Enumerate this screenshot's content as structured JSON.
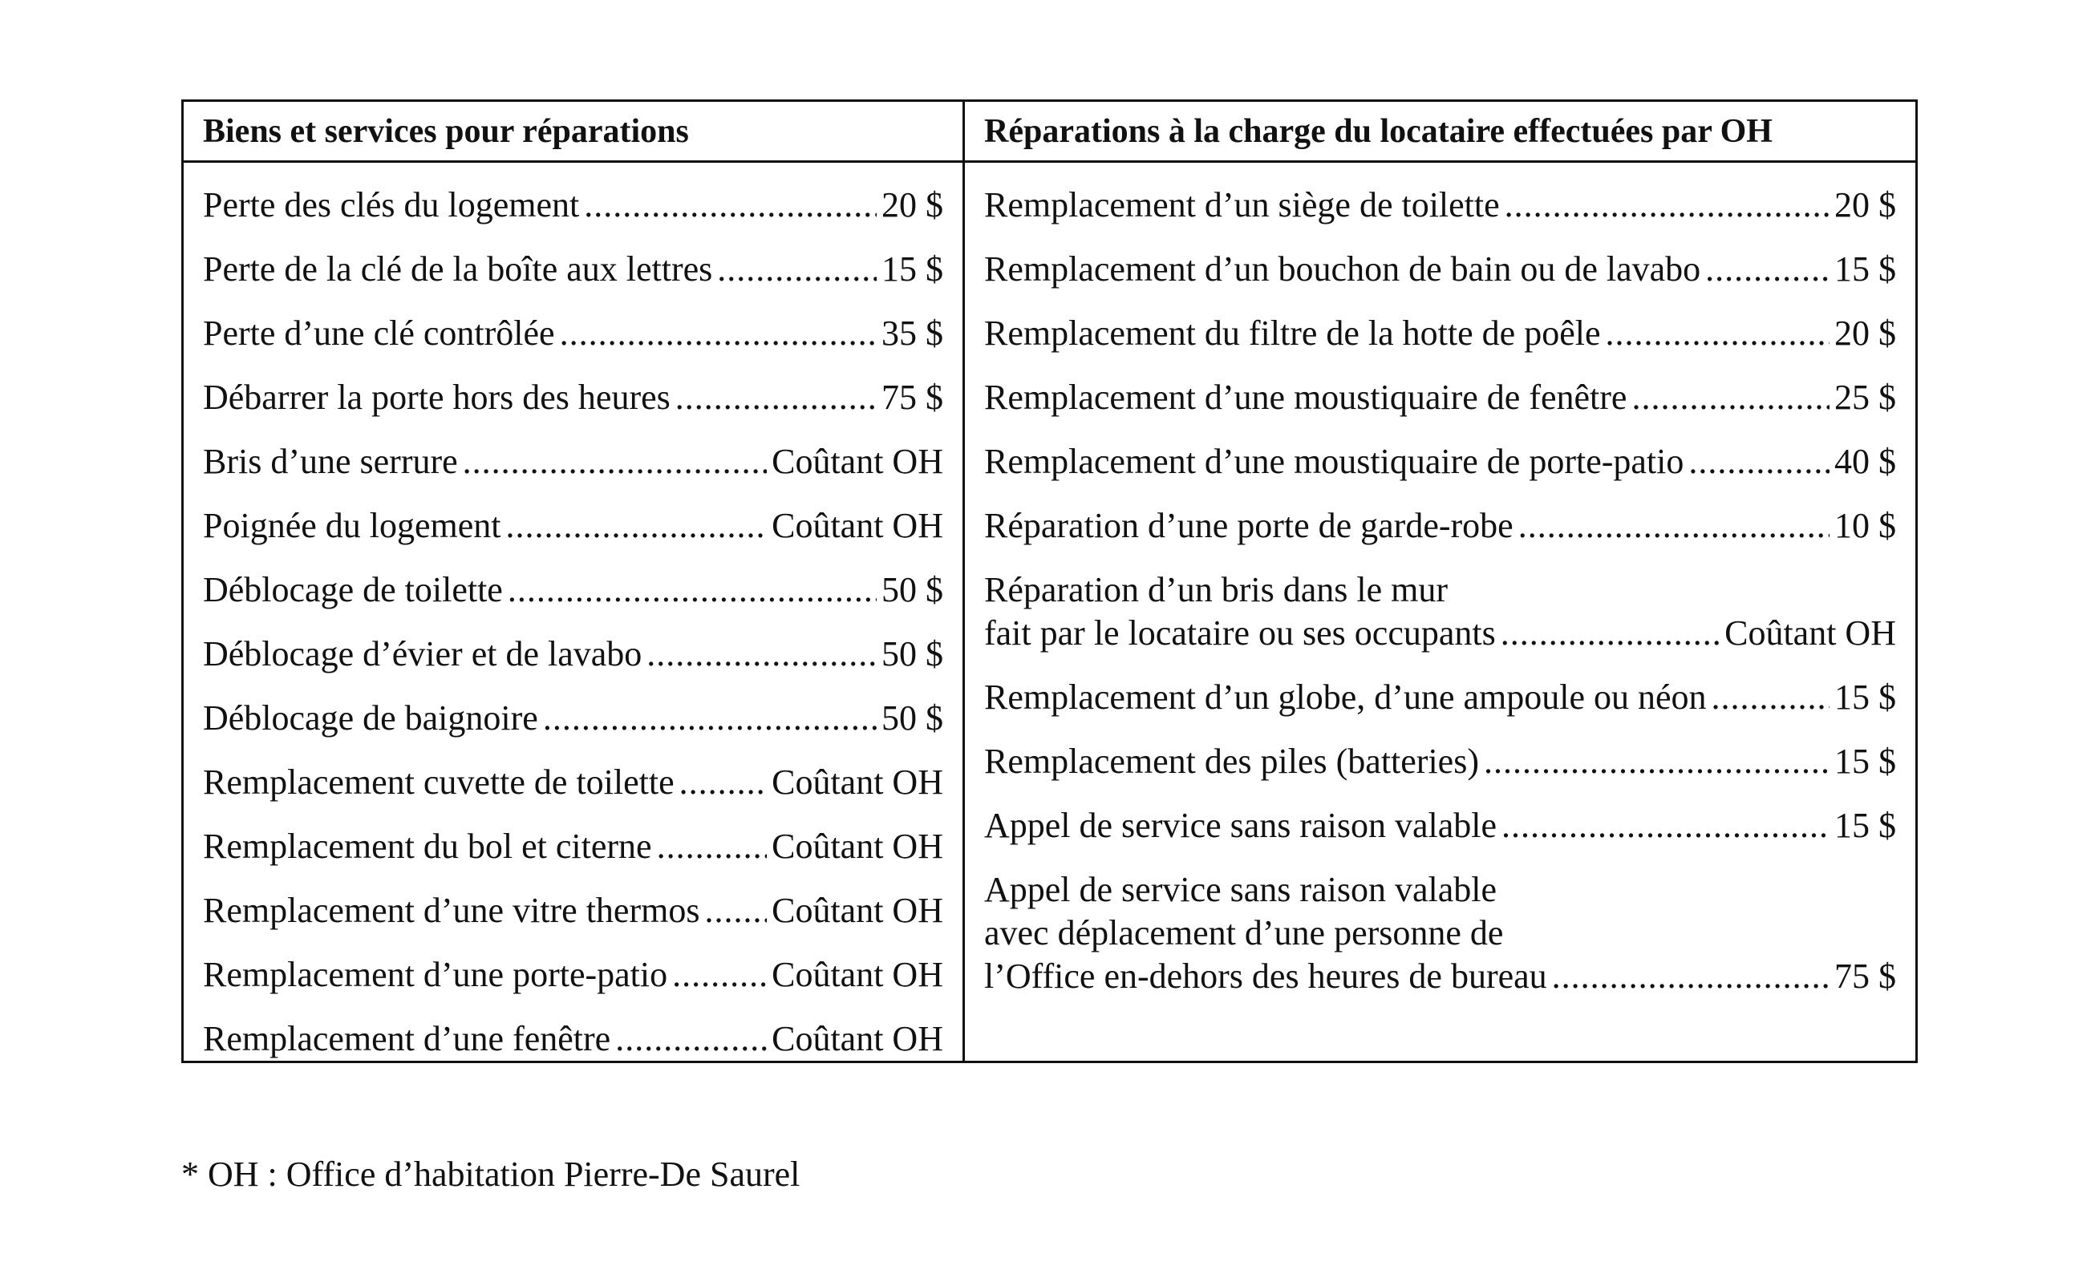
{
  "table": {
    "header": [
      "Biens et services pour réparations",
      "Réparations à la charge du locataire effectuées par OH"
    ],
    "left": [
      {
        "label": [
          "Perte des clés du logement"
        ],
        "price": "20 $"
      },
      {
        "label": [
          "Perte de la clé de la boîte aux lettres"
        ],
        "price": "15 $"
      },
      {
        "label": [
          "Perte d’une clé contrôlée"
        ],
        "price": "35 $"
      },
      {
        "label": [
          "Débarrer la porte hors des heures"
        ],
        "price": "75 $"
      },
      {
        "label": [
          "Bris d’une serrure"
        ],
        "price": "Coûtant OH"
      },
      {
        "label": [
          "Poignée du logement"
        ],
        "price": "Coûtant OH"
      },
      {
        "label": [
          "Déblocage de toilette"
        ],
        "price": "50 $"
      },
      {
        "label": [
          "Déblocage d’évier et de lavabo"
        ],
        "price": "50 $"
      },
      {
        "label": [
          "Déblocage de baignoire"
        ],
        "price": "50 $"
      },
      {
        "label": [
          "Remplacement cuvette de toilette"
        ],
        "price": "Coûtant OH"
      },
      {
        "label": [
          "Remplacement du bol et citerne"
        ],
        "price": "Coûtant OH"
      },
      {
        "label": [
          "Remplacement d’une vitre thermos"
        ],
        "price": "Coûtant OH"
      },
      {
        "label": [
          "Remplacement d’une porte-patio"
        ],
        "price": "Coûtant OH"
      },
      {
        "label": [
          "Remplacement d’une fenêtre"
        ],
        "price": "Coûtant OH"
      }
    ],
    "right": [
      {
        "label": [
          "Remplacement d’un siège de toilette"
        ],
        "price": "20 $"
      },
      {
        "label": [
          "Remplacement d’un bouchon de bain ou de lavabo"
        ],
        "price": "15 $"
      },
      {
        "label": [
          "Remplacement du filtre de la hotte de poêle"
        ],
        "price": "20 $"
      },
      {
        "label": [
          "Remplacement d’une moustiquaire de fenêtre"
        ],
        "price": "25 $"
      },
      {
        "label": [
          "Remplacement d’une moustiquaire de porte-patio"
        ],
        "price": "40 $"
      },
      {
        "label": [
          "Réparation d’une porte de garde-robe"
        ],
        "price": "10 $"
      },
      {
        "label": [
          "Réparation d’un bris dans le mur",
          "fait par le locataire ou ses occupants"
        ],
        "price": "Coûtant OH"
      },
      {
        "label": [
          "Remplacement d’un globe, d’une ampoule ou néon"
        ],
        "price": "15 $"
      },
      {
        "label": [
          "Remplacement des piles (batteries)"
        ],
        "price": "15 $"
      },
      {
        "label": [
          "Appel de service sans raison valable"
        ],
        "price": "15 $"
      },
      {
        "label": [
          "Appel de service sans raison valable",
          "avec déplacement d’une personne de",
          "l’Office en-dehors des heures de bureau"
        ],
        "price": "75 $"
      }
    ]
  },
  "footnote": "* OH : Office d’habitation Pierre-De Saurel"
}
